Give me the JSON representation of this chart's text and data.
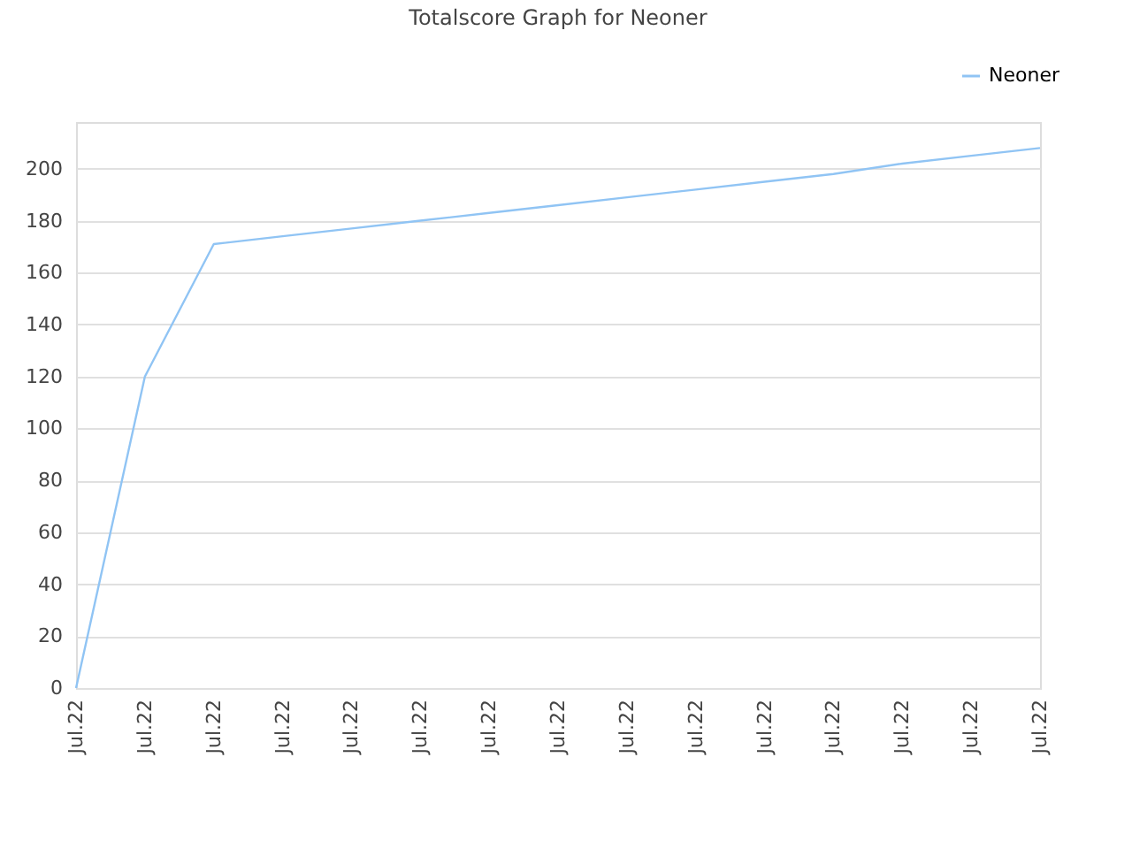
{
  "chart_data": {
    "type": "line",
    "title": "Totalscore Graph for Neoner",
    "categories": [
      "Jul.22",
      "Jul.22",
      "Jul.22",
      "Jul.22",
      "Jul.22",
      "Jul.22",
      "Jul.22",
      "Jul.22",
      "Jul.22",
      "Jul.22",
      "Jul.22",
      "Jul.22",
      "Jul.22",
      "Jul.22",
      "Jul.22"
    ],
    "series": [
      {
        "name": "Neoner",
        "color": "#90c4f4",
        "values": [
          0,
          120,
          171,
          174,
          177,
          180,
          183,
          186,
          189,
          192,
          195,
          198,
          202,
          205,
          208
        ]
      }
    ],
    "ylim": [
      0,
      218
    ],
    "yticks": [
      0,
      20,
      40,
      60,
      80,
      100,
      120,
      140,
      160,
      180,
      200
    ],
    "grid": "y",
    "legend": "top right",
    "marker": "none",
    "line_style": "solid"
  }
}
